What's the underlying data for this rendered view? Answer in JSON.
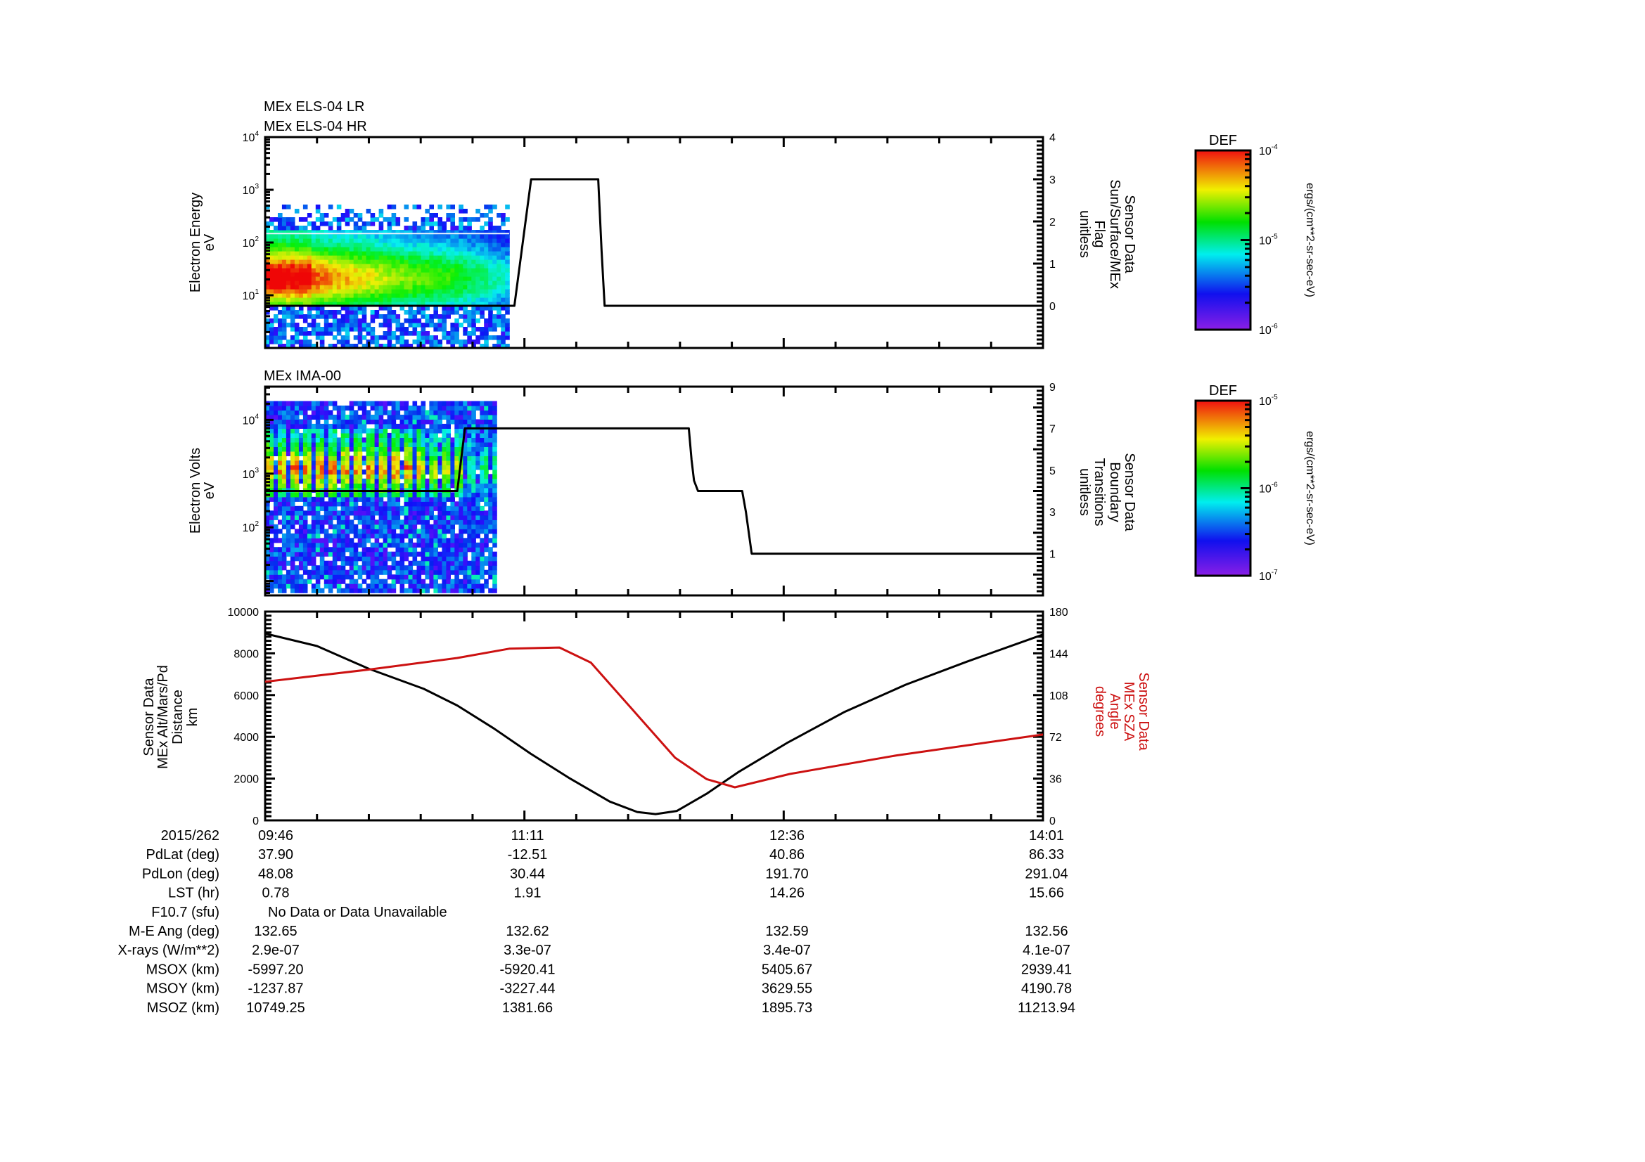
{
  "chart_data": [
    {
      "type": "heatmap",
      "titles": [
        "MEx ELS-04 LR",
        "MEx ELS-04 HR"
      ],
      "ylabel": [
        "Electron Energy",
        "eV"
      ],
      "yscale": "log",
      "ylim": [
        1,
        10000
      ],
      "yticks": [
        {
          "base": "10",
          "exp": "1",
          "value": 10
        },
        {
          "base": "10",
          "exp": "2",
          "value": 100
        },
        {
          "base": "10",
          "exp": "3",
          "value": 1000
        },
        {
          "base": "10",
          "exp": "4",
          "value": 10000
        }
      ],
      "spectrogram": {
        "t_start_min": 0,
        "t_end_min": 80,
        "peak_energy_eV": 20,
        "description_colors": "purple-low to red-high"
      },
      "overlay": {
        "name": "Sensor Data Sun/Surface/MEx Flag",
        "ylabel": [
          "Sensor Data",
          "Sun/Surface/MEx",
          "Flag",
          "unitless"
        ],
        "ylim": [
          -1,
          4
        ],
        "yticks": [
          "0",
          "1",
          "2",
          "3",
          "4"
        ],
        "t_min": [
          0,
          81.7,
          87.2,
          109.2,
          110.3,
          111.3,
          255
        ],
        "values": [
          0,
          0,
          3,
          3,
          1.3,
          0,
          0
        ]
      },
      "colorbar": {
        "title": "DEF",
        "ticks": [
          {
            "base": "10",
            "exp": "-4"
          },
          {
            "base": "10",
            "exp": "-5"
          },
          {
            "base": "10",
            "exp": "-6"
          }
        ],
        "units": "ergs/(cm**2-sr-sec-eV)"
      }
    },
    {
      "type": "heatmap",
      "titles": [
        "MEx IMA-00"
      ],
      "ylabel": [
        "Electron Volts",
        "eV"
      ],
      "yscale": "log",
      "ylim": [
        5.4,
        41700
      ],
      "yticks": [
        {
          "base": "10",
          "exp": "2",
          "value": 100
        },
        {
          "base": "10",
          "exp": "3",
          "value": 1000
        },
        {
          "base": "10",
          "exp": "4",
          "value": 10000
        }
      ],
      "spectrogram": {
        "t_start_min": 0,
        "t_end_min": 75.5,
        "emax_eV": 20000
      },
      "overlay": {
        "name": "Sensor Data Boundary Transitions",
        "ylabel": [
          "Sensor Data",
          "Boundary",
          "Transitions",
          "unitless"
        ],
        "ylim": [
          -1,
          9
        ],
        "yticks": [
          "1",
          "3",
          "5",
          "7",
          "9"
        ],
        "t_min": [
          0,
          63,
          65.5,
          138.9,
          139.8,
          140.6,
          141.9,
          156.4,
          157.6,
          159.5,
          255
        ],
        "values": [
          4,
          4,
          7,
          7,
          5.5,
          4.5,
          4,
          4,
          3,
          1,
          1
        ]
      },
      "colorbar": {
        "title": "DEF",
        "ticks": [
          {
            "base": "10",
            "exp": "-5"
          },
          {
            "base": "10",
            "exp": "-6"
          },
          {
            "base": "10",
            "exp": "-7"
          }
        ],
        "units": "ergs/(cm**2-sr-sec-eV)"
      }
    },
    {
      "type": "line",
      "ylabel_left": [
        "Sensor Data",
        "MEx Alt/Mars/Pd",
        "Distance",
        "km"
      ],
      "ylabel_right": [
        "Sensor Data",
        "MEx SZA",
        "Angle",
        "degrees"
      ],
      "ylim_left": [
        0,
        10000
      ],
      "ylim_right": [
        0,
        180
      ],
      "yticks_left": [
        "0",
        "2000",
        "4000",
        "6000",
        "8000",
        "10000"
      ],
      "yticks_right": [
        "0",
        "36",
        "72",
        "108",
        "144",
        "180"
      ],
      "series": [
        {
          "name": "MEx Alt/Mars/Pd Distance (km)",
          "color": "#000000",
          "axis": "left",
          "t_min": [
            0,
            17,
            34,
            52,
            63,
            75,
            87,
            100,
            113,
            122,
            128,
            135,
            145,
            155,
            171,
            190,
            210,
            230,
            255
          ],
          "values": [
            8950,
            8350,
            7260,
            6300,
            5500,
            4400,
            3200,
            2000,
            900,
            400,
            300,
            450,
            1300,
            2300,
            3700,
            5200,
            6500,
            7600,
            8900
          ]
        },
        {
          "name": "MEx SZA Angle (degrees)",
          "color": "#cc1111",
          "axis": "right",
          "t_min": [
            0,
            34,
            63,
            80,
            96.5,
            106.8,
            120.6,
            134.4,
            144.7,
            154,
            172,
            207,
            255
          ],
          "values": [
            119.5,
            130,
            140,
            148,
            149,
            136,
            95,
            54,
            35.6,
            28.5,
            40,
            56,
            74
          ]
        }
      ]
    }
  ],
  "time_axis": {
    "date": "2015/262",
    "labels": [
      "09:46",
      "11:11",
      "12:36",
      "14:01"
    ],
    "span_min": 255
  },
  "ephemeris": {
    "rows": [
      {
        "label": "PdLat (deg)",
        "values": [
          "37.90",
          "-12.51",
          "40.86",
          "86.33"
        ]
      },
      {
        "label": "PdLon (deg)",
        "values": [
          "48.08",
          "30.44",
          "191.70",
          "291.04"
        ]
      },
      {
        "label": "LST (hr)",
        "values": [
          "0.78",
          "1.91",
          "14.26",
          "15.66"
        ]
      },
      {
        "label": "F10.7 (sfu)",
        "note": "No Data or Data Unavailable"
      },
      {
        "label": "M-E Ang (deg)",
        "values": [
          "132.65",
          "132.62",
          "132.59",
          "132.56"
        ]
      },
      {
        "label": "X-rays (W/m**2)",
        "values": [
          "2.9e-07",
          "3.3e-07",
          "3.4e-07",
          "4.1e-07"
        ]
      },
      {
        "label": "MSOX (km)",
        "values": [
          "-5997.20",
          "-5920.41",
          "5405.67",
          "2939.41"
        ]
      },
      {
        "label": "MSOY (km)",
        "values": [
          "-1237.87",
          "-3227.44",
          "3629.55",
          "4190.78"
        ]
      },
      {
        "label": "MSOZ (km)",
        "values": [
          "10749.25",
          "1381.66",
          "1895.73",
          "11213.94"
        ]
      }
    ]
  }
}
